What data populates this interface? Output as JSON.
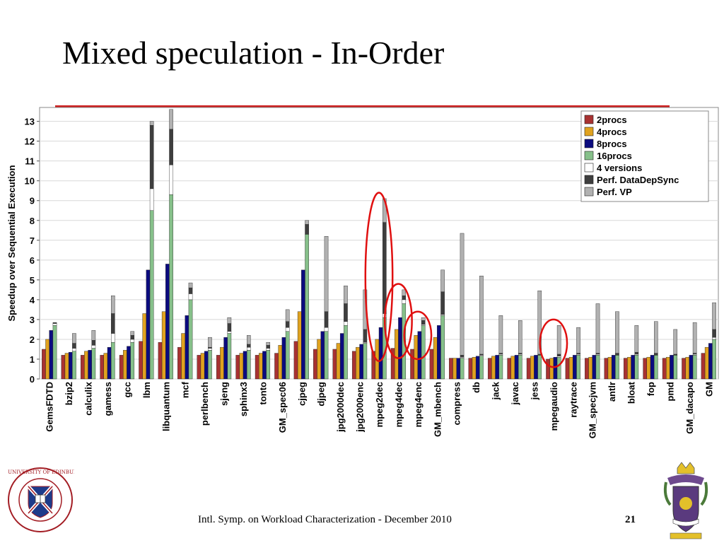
{
  "slide": {
    "title": "Mixed speculation - In-Order",
    "footer": "Intl. Symp. on Workload Characterization - December 2010",
    "page_number": "21",
    "accent_color": "#cc1f1f",
    "logo_left": {
      "name": "university-of-edinburgh-seal",
      "ring_text": "THE UNIVERSITY OF EDINBURGH"
    },
    "logo_right": {
      "name": "coat-of-arms-crest"
    }
  },
  "chart_data": {
    "type": "bar",
    "stacked": true,
    "grouped": true,
    "title": "",
    "xlabel": "",
    "ylabel": "Speedup over Sequential Execution",
    "ylim": [
      0,
      13.7
    ],
    "yticks": [
      0,
      1,
      2,
      3,
      4,
      5,
      6,
      7,
      8,
      9,
      10,
      11,
      12,
      13
    ],
    "grid": true,
    "legend_position": "top-right",
    "categories": [
      "GemsFDTD",
      "bzip2",
      "calculix",
      "gamess",
      "gcc",
      "lbm",
      "libquantum",
      "mcf",
      "perlbench",
      "sjeng",
      "sphinx3",
      "tonto",
      "GM_spec06",
      "cjpeg",
      "djpeg",
      "jpg2000dec",
      "jpg2000enc",
      "mpeg2dec",
      "mpeg4dec",
      "mpeg4enc",
      "GM_mbench",
      "compress",
      "db",
      "jack",
      "javac",
      "jess",
      "mpegaudio",
      "raytrace",
      "GM_specjvm",
      "antlr",
      "bloat",
      "fop",
      "pmd",
      "GM_dacapo",
      "GM"
    ],
    "base_series": [
      {
        "name": "2procs",
        "color": "#a83232",
        "values": [
          1.5,
          1.2,
          1.2,
          1.2,
          1.2,
          1.9,
          1.85,
          1.6,
          1.2,
          1.2,
          1.2,
          1.2,
          1.3,
          1.9,
          1.5,
          1.5,
          1.4,
          1.4,
          1.55,
          1.5,
          1.5,
          1.05,
          1.05,
          1.05,
          1.05,
          1.05,
          1.0,
          1.05,
          1.05,
          1.05,
          1.05,
          1.05,
          1.05,
          1.05,
          1.3
        ]
      },
      {
        "name": "4procs",
        "color": "#e0a21f",
        "values": [
          2.0,
          1.3,
          1.4,
          1.3,
          1.45,
          3.3,
          3.4,
          2.3,
          1.3,
          1.6,
          1.3,
          1.3,
          1.7,
          3.4,
          2.0,
          1.8,
          1.6,
          2.0,
          2.5,
          2.2,
          2.1,
          1.05,
          1.1,
          1.15,
          1.15,
          1.15,
          1.05,
          1.1,
          1.1,
          1.1,
          1.1,
          1.1,
          1.1,
          1.1,
          1.6
        ]
      },
      {
        "name": "8procs",
        "color": "#0b0b7f",
        "values": [
          2.45,
          1.35,
          1.45,
          1.6,
          1.65,
          5.5,
          5.8,
          3.2,
          1.4,
          2.1,
          1.4,
          1.4,
          2.1,
          5.5,
          2.4,
          2.3,
          1.75,
          2.6,
          3.1,
          2.4,
          2.7,
          1.05,
          1.15,
          1.2,
          1.2,
          1.2,
          1.1,
          1.2,
          1.2,
          1.2,
          1.2,
          1.2,
          1.2,
          1.2,
          1.8
        ]
      },
      {
        "name": "16procs",
        "color": "#86c08a",
        "values": [
          2.7,
          1.4,
          1.55,
          1.85,
          1.85,
          8.5,
          9.3,
          4.0,
          1.45,
          2.3,
          1.45,
          1.45,
          2.4,
          7.3,
          2.4,
          2.7,
          1.8,
          3.1,
          3.8,
          2.7,
          3.2,
          1.05,
          1.15,
          1.2,
          1.2,
          1.2,
          1.1,
          1.2,
          1.2,
          1.2,
          1.2,
          1.2,
          1.2,
          1.2,
          2.0
        ]
      }
    ],
    "stack_series": [
      {
        "name": "4 versions",
        "color": "#ffffff",
        "values": [
          2.8,
          1.55,
          1.7,
          2.3,
          2.0,
          9.6,
          10.8,
          4.3,
          1.55,
          2.4,
          1.6,
          1.55,
          2.6,
          7.3,
          2.6,
          2.9,
          1.85,
          3.3,
          4.0,
          2.75,
          3.25,
          1.1,
          1.2,
          1.25,
          1.25,
          1.2,
          1.15,
          1.25,
          1.25,
          1.2,
          1.25,
          1.2,
          1.2,
          1.25,
          2.1
        ]
      },
      {
        "name": "Perf. DataDepSync",
        "color": "#3e3e3e",
        "values": [
          2.85,
          1.8,
          1.95,
          3.3,
          2.2,
          12.8,
          12.6,
          4.6,
          1.6,
          2.8,
          1.75,
          1.7,
          2.9,
          7.8,
          3.4,
          3.8,
          2.5,
          7.9,
          4.2,
          2.95,
          4.4,
          1.2,
          1.25,
          1.3,
          1.3,
          1.25,
          1.25,
          1.3,
          1.3,
          1.3,
          1.35,
          1.3,
          1.25,
          1.3,
          2.5
        ]
      },
      {
        "name": "Perf. VP",
        "color": "#b1b1b1",
        "values": [
          2.85,
          2.3,
          2.45,
          4.2,
          2.4,
          13.0,
          13.6,
          4.85,
          2.1,
          3.1,
          2.2,
          1.85,
          3.5,
          8.0,
          7.2,
          4.7,
          4.5,
          9.1,
          4.5,
          3.1,
          5.5,
          7.35,
          5.2,
          3.2,
          2.95,
          4.45,
          2.7,
          2.6,
          3.8,
          3.4,
          2.7,
          2.9,
          2.5,
          2.85,
          3.85
        ]
      }
    ],
    "highlighted_categories": [
      "mpeg2dec",
      "mpeg4dec",
      "mpeg4enc",
      "mpegaudio"
    ],
    "highlight_color": "#e01010"
  }
}
